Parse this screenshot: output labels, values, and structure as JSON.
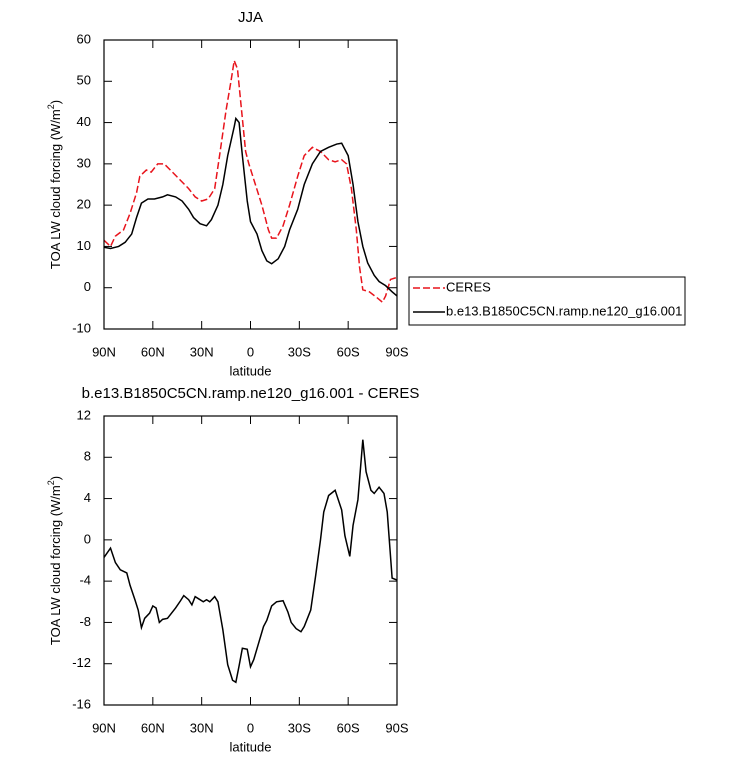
{
  "chart_data": [
    {
      "type": "line",
      "title": "JJA",
      "x_label": "latitude",
      "y_label": [
        "TOA LW cloud forcing (W/m",
        "2",
        ")"
      ],
      "xlim": [
        90,
        -90
      ],
      "xticks": [
        {
          "value": 90,
          "label": "90N"
        },
        {
          "value": 60,
          "label": "60N"
        },
        {
          "value": 30,
          "label": "30N"
        },
        0,
        {
          "value": -30,
          "label": "30S"
        },
        {
          "value": -60,
          "label": "60S"
        },
        {
          "value": -90,
          "label": "90S"
        }
      ],
      "ylim": [
        -10,
        60
      ],
      "yticks": [
        -10,
        0,
        10,
        20,
        30,
        40,
        50,
        60
      ],
      "legend": "right",
      "series": [
        {
          "name": "CERES",
          "color": "#e8141c",
          "dashed": true,
          "x": [
            90,
            86,
            83,
            78,
            74,
            70,
            68,
            64,
            61,
            57,
            53,
            48,
            43,
            38,
            34,
            30,
            26,
            22,
            19,
            15,
            12,
            10,
            8,
            6,
            3,
            1,
            -3,
            -7,
            -11,
            -13,
            -16,
            -20,
            -24,
            -29,
            -33,
            -38,
            -43,
            -48,
            -52,
            -56,
            -59,
            -62,
            -65,
            -67,
            -69,
            -73,
            -78,
            -81,
            -83,
            -86,
            -90
          ],
          "values": [
            11.5,
            10,
            12.5,
            14,
            18,
            23,
            27,
            28.5,
            28,
            30,
            30,
            28,
            26,
            24,
            22,
            21,
            21.5,
            24,
            32,
            43,
            50,
            55,
            53,
            45,
            33,
            30,
            25,
            20,
            14,
            12,
            12,
            15,
            20,
            27,
            32,
            34,
            33,
            31,
            30.5,
            31,
            30,
            24,
            14,
            5,
            -0.5,
            -1,
            -2.5,
            -3.5,
            -2,
            2,
            2.5
          ]
        },
        {
          "name": "b.e13.B1850C5CN.ramp.ne120_g16.001",
          "color": "#000000",
          "dashed": false,
          "x": [
            90,
            86,
            81,
            77,
            73,
            70,
            67,
            63,
            59,
            54,
            51,
            46,
            42,
            38,
            35,
            31,
            27,
            24,
            20,
            17,
            14,
            10,
            9,
            7,
            5,
            2,
            0,
            -4,
            -7,
            -10,
            -13,
            -17,
            -21,
            -24,
            -29,
            -33,
            -38,
            -43,
            -48,
            -53,
            -56,
            -60,
            -63,
            -66,
            -69,
            -72,
            -76,
            -79,
            -83,
            -87,
            -90
          ],
          "values": [
            9.8,
            9.5,
            10,
            11,
            13,
            17,
            20.5,
            21.5,
            21.5,
            22,
            22.5,
            22,
            21,
            19,
            17,
            15.5,
            15,
            16.5,
            20,
            25,
            32,
            39,
            41,
            40,
            32,
            21,
            16,
            13,
            9,
            6.5,
            5.8,
            7,
            10,
            14,
            19,
            25,
            30,
            33,
            34,
            34.8,
            35,
            32,
            25,
            16,
            10,
            6,
            3,
            1.5,
            0.5,
            -1,
            -2
          ]
        }
      ]
    },
    {
      "type": "line",
      "title": "b.e13.B1850C5CN.ramp.ne120_g16.001 - CERES",
      "x_label": "latitude",
      "y_label": [
        "TOA LW cloud forcing (W/m",
        "2",
        ")"
      ],
      "xlim": [
        90,
        -90
      ],
      "xticks": [
        {
          "value": 90,
          "label": "90N"
        },
        {
          "value": 60,
          "label": "60N"
        },
        {
          "value": 30,
          "label": "30N"
        },
        0,
        {
          "value": -30,
          "label": "30S"
        },
        {
          "value": -60,
          "label": "60S"
        },
        {
          "value": -90,
          "label": "90S"
        }
      ],
      "ylim": [
        -16,
        12
      ],
      "yticks": [
        -16,
        -12,
        -8,
        -4,
        0,
        4,
        8,
        12
      ],
      "color": "#000000",
      "x": [
        90,
        86,
        83,
        80,
        76,
        74,
        71,
        69,
        67,
        65,
        62,
        60,
        58,
        56,
        54,
        51,
        46,
        43,
        41,
        38,
        36,
        34,
        32,
        29,
        27,
        25,
        22,
        20,
        17,
        14,
        11,
        9,
        7,
        5,
        2,
        0,
        -2,
        -5,
        -8,
        -10,
        -13,
        -16,
        -20,
        -23,
        -25,
        -28,
        -31,
        -33,
        -37,
        -40,
        -43,
        -45,
        -48,
        -52,
        -56,
        -58,
        -61,
        -63,
        -66,
        -69,
        -71,
        -74,
        -76,
        -79,
        -82,
        -84,
        -87,
        -90
      ],
      "values": [
        -1.7,
        -0.8,
        -2.2,
        -2.9,
        -3.2,
        -4.4,
        -5.8,
        -6.8,
        -8.5,
        -7.6,
        -7.1,
        -6.4,
        -6.6,
        -8,
        -7.7,
        -7.6,
        -6.6,
        -5.9,
        -5.4,
        -5.8,
        -6.3,
        -5.5,
        -5.7,
        -6,
        -5.8,
        -6,
        -5.5,
        -6,
        -8.7,
        -12.1,
        -13.6,
        -13.8,
        -12.2,
        -10.5,
        -10.6,
        -12.3,
        -11.6,
        -10,
        -8.4,
        -7.8,
        -6.4,
        -6,
        -5.9,
        -7,
        -8,
        -8.6,
        -8.9,
        -8.4,
        -6.8,
        -3.5,
        0,
        2.7,
        4.3,
        4.8,
        2.9,
        0.4,
        -1.6,
        1.4,
        3.9,
        9.7,
        6.6,
        4.8,
        4.5,
        5.1,
        4.5,
        2.7,
        -3.7,
        -3.9
      ]
    }
  ]
}
